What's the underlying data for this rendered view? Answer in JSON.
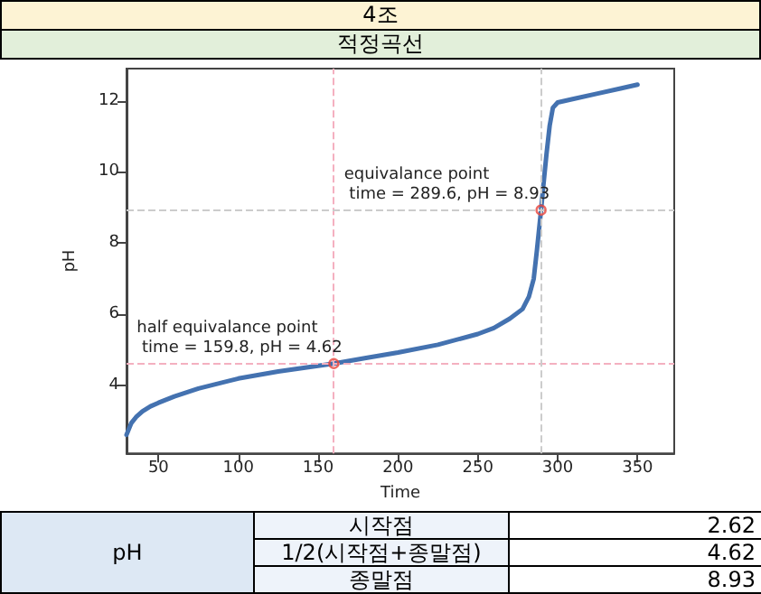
{
  "chart_data": [
    {
      "type": "line",
      "title": "4조",
      "subtitle": "적정곡선",
      "xlabel": "Time",
      "ylabel": "pH",
      "xlim": [
        30,
        373
      ],
      "ylim": [
        2.1,
        12.9
      ],
      "xticks": [
        50,
        100,
        150,
        200,
        250,
        300,
        350
      ],
      "yticks": [
        4,
        6,
        8,
        10,
        12
      ],
      "grid": false,
      "marker": "none",
      "line_style": "solid",
      "series": [
        {
          "color": "#4472b0",
          "x": [
            30,
            33,
            36,
            40,
            45,
            50,
            60,
            75,
            100,
            125,
            159.8,
            180,
            200,
            225,
            250,
            260,
            270,
            278,
            282,
            285,
            287,
            289.6,
            291,
            293,
            295,
            297,
            300,
            310,
            325,
            340,
            350
          ],
          "values": [
            2.62,
            2.95,
            3.12,
            3.28,
            3.42,
            3.52,
            3.7,
            3.92,
            4.2,
            4.4,
            4.62,
            4.78,
            4.93,
            5.15,
            5.45,
            5.62,
            5.88,
            6.15,
            6.5,
            7.0,
            7.8,
            8.93,
            9.6,
            10.5,
            11.3,
            11.8,
            11.95,
            12.05,
            12.2,
            12.35,
            12.45
          ]
        },
        {
          "type": "scatter",
          "marker": "circle",
          "color": "#e8453c",
          "x": [
            159.8,
            289.6
          ],
          "values": [
            4.62,
            8.93
          ]
        }
      ],
      "ref_lines": [
        {
          "axis": "x",
          "value": 159.8,
          "color": "#f4b0c0",
          "line_style": "dashed"
        },
        {
          "axis": "y",
          "value": 4.62,
          "color": "#f4b0c0",
          "line_style": "dashed"
        },
        {
          "axis": "x",
          "value": 289.6,
          "color": "#cccccc",
          "line_style": "dashed"
        },
        {
          "axis": "y",
          "value": 8.93,
          "color": "#cccccc",
          "line_style": "dashed"
        }
      ],
      "annotations": [
        {
          "text": "half equivalance point\n time = 159.8, pH = 4.62",
          "x": 159.8,
          "y": 4.62
        },
        {
          "text": "equivalance point\n time = 289.6, pH = 8.93",
          "x": 289.6,
          "y": 8.93
        }
      ]
    },
    {
      "type": "other",
      "ylabel": "pH",
      "categories": [
        "시작점",
        "1/2(시작점+종말점)",
        "종말점"
      ],
      "values": [
        2.62,
        4.62,
        8.93
      ],
      "data_labels": true
    }
  ]
}
